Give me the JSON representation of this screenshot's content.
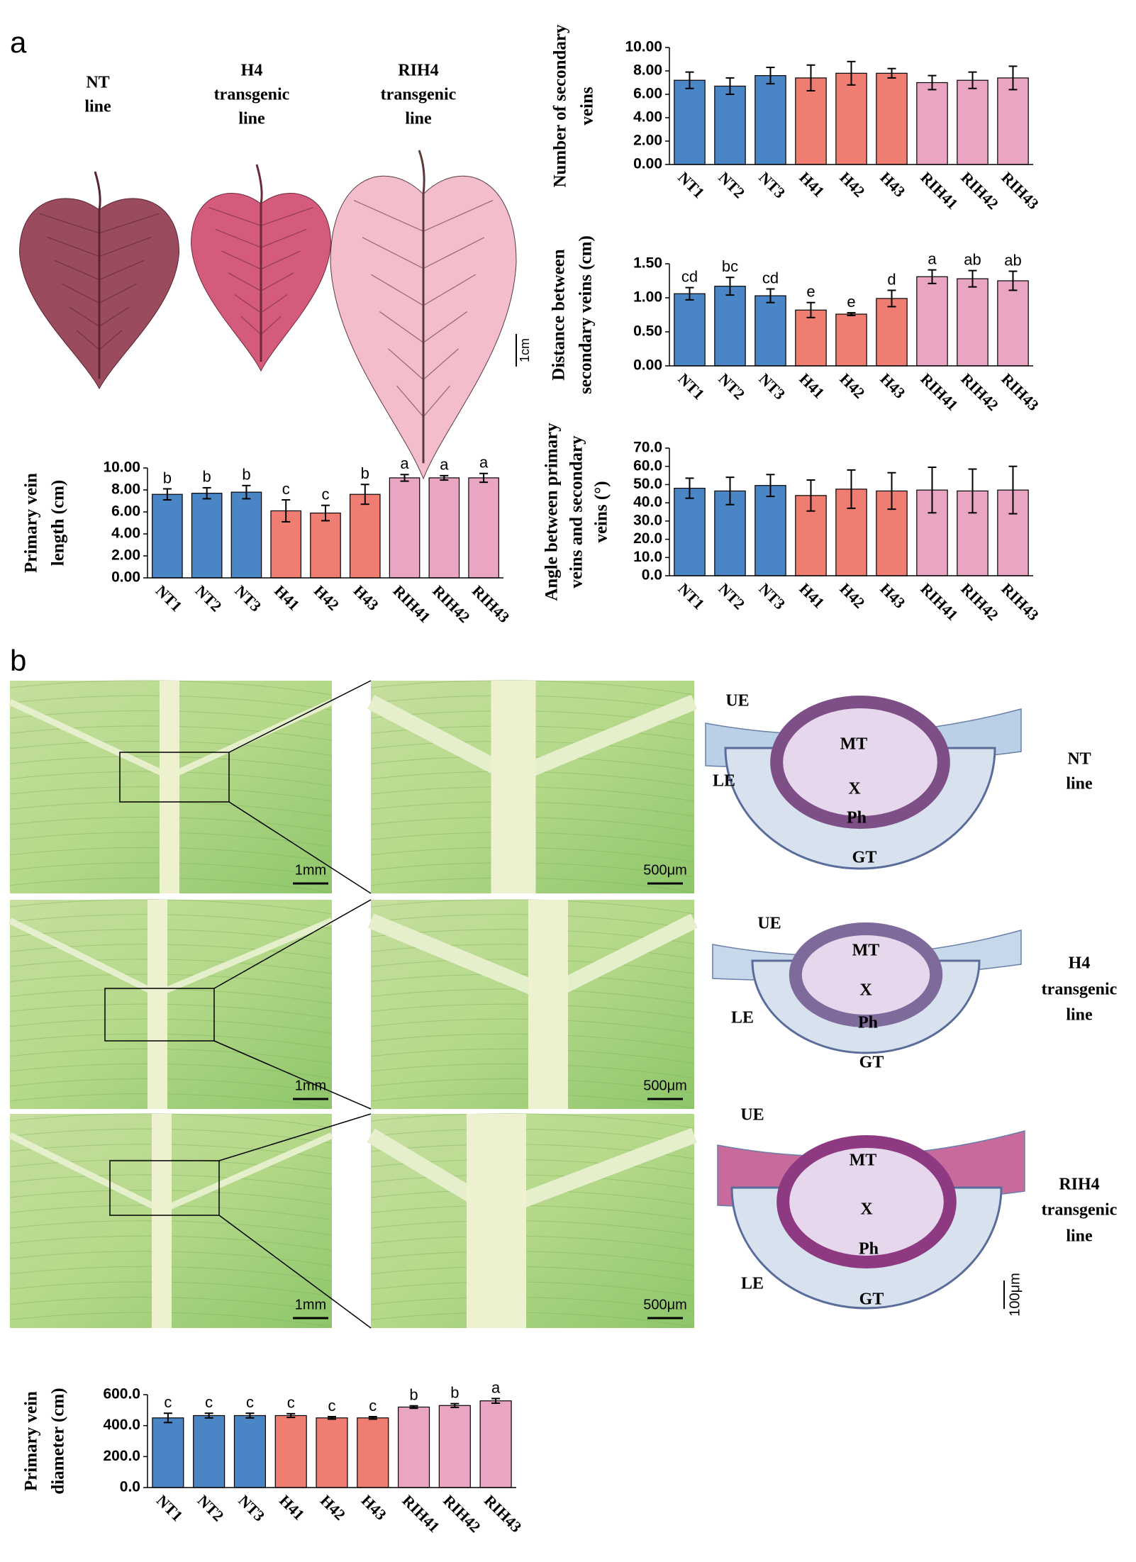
{
  "chart_data": [
    {
      "type": "bar",
      "ylabel": [
        "Number of secondary",
        "veins"
      ],
      "categories": [
        "NT1",
        "NT2",
        "NT3",
        "H41",
        "H42",
        "H43",
        "RIH41",
        "RIH42",
        "RIH43"
      ],
      "values": [
        7.2,
        6.7,
        7.6,
        7.4,
        7.8,
        7.8,
        7.0,
        7.2,
        7.4
      ],
      "errors": [
        0.7,
        0.7,
        0.7,
        1.1,
        1.0,
        0.4,
        0.6,
        0.7,
        1.0
      ],
      "colors": [
        "#4a86c5",
        "#4a86c5",
        "#4a86c5",
        "#f07d71",
        "#f07d71",
        "#f07d71",
        "#eaa5c2",
        "#eaa5c2",
        "#eaa5c2"
      ],
      "ylim": [
        0,
        10
      ],
      "yticks": [
        {
          "value": 0,
          "label": "0.00"
        },
        {
          "value": 2,
          "label": "2.00"
        },
        {
          "value": 4,
          "label": "4.00"
        },
        {
          "value": 6,
          "label": "6.00"
        },
        {
          "value": 8,
          "label": "8.00"
        },
        {
          "value": 10,
          "label": "10.00"
        }
      ]
    },
    {
      "type": "bar",
      "ylabel": [
        "Distance between",
        "secondary veins (cm)"
      ],
      "categories": [
        "NT1",
        "NT2",
        "NT3",
        "H41",
        "H42",
        "H43",
        "RIH41",
        "RIH42",
        "RIH43"
      ],
      "values": [
        1.06,
        1.17,
        1.03,
        0.82,
        0.76,
        0.99,
        1.31,
        1.28,
        1.25
      ],
      "errors": [
        0.09,
        0.13,
        0.1,
        0.11,
        0.02,
        0.12,
        0.1,
        0.12,
        0.14
      ],
      "annotations": [
        "cd",
        "bc",
        "cd",
        "e",
        "e",
        "d",
        "a",
        "ab",
        "ab"
      ],
      "colors": [
        "#4a86c5",
        "#4a86c5",
        "#4a86c5",
        "#f07d71",
        "#f07d71",
        "#f07d71",
        "#eaa5c2",
        "#eaa5c2",
        "#eaa5c2"
      ],
      "ylim": [
        0,
        1.5
      ],
      "yticks": [
        {
          "value": 0,
          "label": "0.00"
        },
        {
          "value": 0.5,
          "label": "0.50"
        },
        {
          "value": 1,
          "label": "1.00"
        },
        {
          "value": 1.5,
          "label": "1.50"
        }
      ]
    },
    {
      "type": "bar",
      "ylabel": [
        "Angle between primary",
        "veins and secondary",
        "veins (°)"
      ],
      "categories": [
        "NT1",
        "NT2",
        "NT3",
        "H41",
        "H42",
        "H43",
        "RIH41",
        "RIH42",
        "RIH43"
      ],
      "values": [
        48,
        46.5,
        49.5,
        44,
        47.5,
        46.5,
        47,
        46.5,
        47
      ],
      "errors": [
        5.5,
        7.5,
        6,
        8.5,
        10.5,
        10,
        12.5,
        12,
        13
      ],
      "colors": [
        "#4a86c5",
        "#4a86c5",
        "#4a86c5",
        "#f07d71",
        "#f07d71",
        "#f07d71",
        "#eaa5c2",
        "#eaa5c2",
        "#eaa5c2"
      ],
      "ylim": [
        0,
        70
      ],
      "yticks": [
        {
          "value": 0,
          "label": "0.0"
        },
        {
          "value": 10,
          "label": "10.0"
        },
        {
          "value": 20,
          "label": "20.0"
        },
        {
          "value": 30,
          "label": "30.0"
        },
        {
          "value": 40,
          "label": "40.0"
        },
        {
          "value": 50,
          "label": "50.0"
        },
        {
          "value": 60,
          "label": "60.0"
        },
        {
          "value": 70,
          "label": "70.0"
        }
      ]
    },
    {
      "type": "bar",
      "ylabel": [
        "Primary vein",
        "length (cm)"
      ],
      "categories": [
        "NT1",
        "NT2",
        "NT3",
        "H41",
        "H42",
        "H43",
        "RIH41",
        "RIH42",
        "RIH43"
      ],
      "values": [
        7.6,
        7.7,
        7.8,
        6.1,
        5.9,
        7.6,
        9.1,
        9.1,
        9.1
      ],
      "errors": [
        0.5,
        0.5,
        0.6,
        1.0,
        0.7,
        0.9,
        0.3,
        0.2,
        0.4
      ],
      "annotations": [
        "b",
        "b",
        "b",
        "c",
        "c",
        "b",
        "a",
        "a",
        "a"
      ],
      "colors": [
        "#4a86c5",
        "#4a86c5",
        "#4a86c5",
        "#f07d71",
        "#f07d71",
        "#f07d71",
        "#eaa5c2",
        "#eaa5c2",
        "#eaa5c2"
      ],
      "ylim": [
        0,
        10
      ],
      "yticks": [
        {
          "value": 0,
          "label": "0.00"
        },
        {
          "value": 2,
          "label": "2.00"
        },
        {
          "value": 4,
          "label": "4.00"
        },
        {
          "value": 6,
          "label": "6.00"
        },
        {
          "value": 8,
          "label": "8.00"
        },
        {
          "value": 10,
          "label": "10.00"
        }
      ]
    },
    {
      "type": "bar",
      "ylabel": [
        "Primary vein",
        "diameter (cm)"
      ],
      "categories": [
        "NT1",
        "NT2",
        "NT3",
        "H41",
        "H42",
        "H43",
        "RIH41",
        "RIH42",
        "RIH43"
      ],
      "values": [
        450,
        465,
        465,
        465,
        450,
        450,
        520,
        530,
        560
      ],
      "errors": [
        30,
        15,
        15,
        12,
        8,
        8,
        8,
        12,
        15
      ],
      "annotations": [
        "c",
        "c",
        "c",
        "c",
        "c",
        "c",
        "b",
        "b",
        "a"
      ],
      "colors": [
        "#4a86c5",
        "#4a86c5",
        "#4a86c5",
        "#f07d71",
        "#f07d71",
        "#f07d71",
        "#eaa5c2",
        "#eaa5c2",
        "#eaa5c2"
      ],
      "ylim": [
        0,
        600
      ],
      "yticks": [
        {
          "value": 0,
          "label": "0.0"
        },
        {
          "value": 200,
          "label": "200.0"
        },
        {
          "value": 400,
          "label": "400.0"
        },
        {
          "value": 600,
          "label": "600.0"
        }
      ]
    }
  ],
  "panel_labels": [
    "a",
    "b"
  ],
  "leaf_labels": [
    [
      "NT",
      "line"
    ],
    [
      "H4",
      "transgenic",
      "line"
    ],
    [
      "RIH4",
      "transgenic",
      "line"
    ]
  ],
  "leaf_scale": "1cm",
  "zoom_scales": [
    [
      "1mm",
      "500μm"
    ],
    [
      "1mm",
      "500μm"
    ],
    [
      "1mm",
      "500μm"
    ]
  ],
  "section_labels": [
    [
      "UE",
      "LE",
      "MT",
      "X",
      "Ph",
      "GT"
    ],
    [
      "UE",
      "LE",
      "MT",
      "X",
      "Ph",
      "GT"
    ],
    [
      "UE",
      "LE",
      "MT",
      "X",
      "Ph",
      "GT"
    ]
  ],
  "section_line_labels": [
    [
      "NT",
      "line"
    ],
    [
      "H4",
      "transgenic",
      "line"
    ],
    [
      "RIH4",
      "transgenic",
      "line"
    ]
  ],
  "section_scale": "100μm"
}
